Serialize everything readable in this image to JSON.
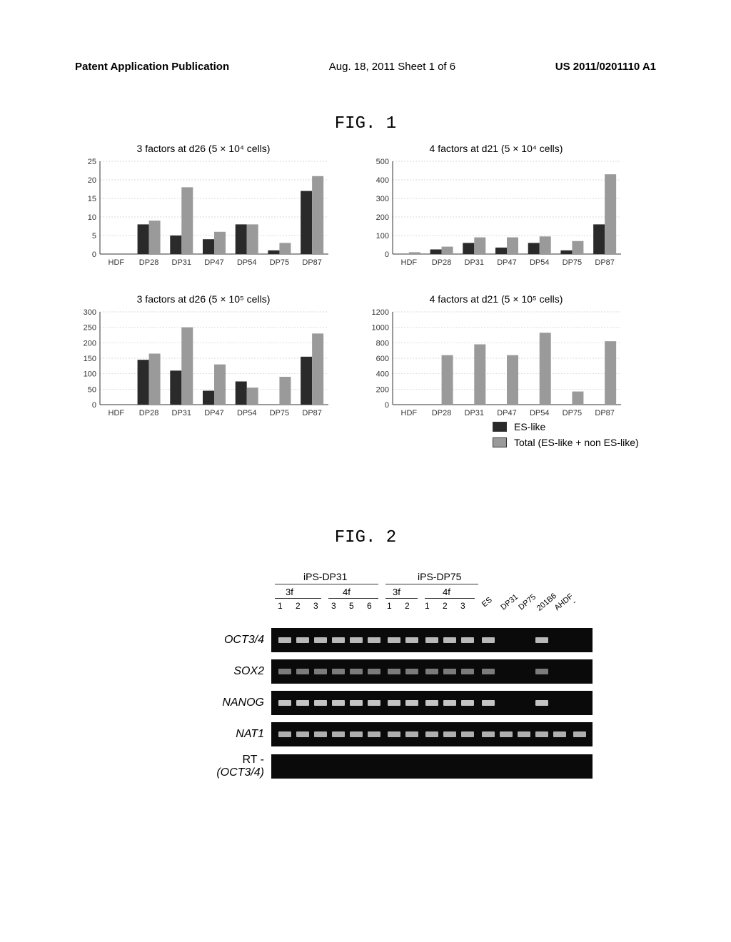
{
  "header": {
    "left": "Patent Application Publication",
    "mid": "Aug. 18, 2011  Sheet 1 of 6",
    "right": "US 2011/0201110 A1"
  },
  "fig1_label": "FIG. 1",
  "fig2_label": "FIG. 2",
  "charts": {
    "categories": [
      "HDF",
      "DP28",
      "DP31",
      "DP47",
      "DP54",
      "DP75",
      "DP87"
    ],
    "es_color": "#2a2a2a",
    "total_color": "#9a9a9a",
    "grid_color": "#cccccc",
    "axis_color": "#333333",
    "bg_color": "#ffffff",
    "label_fontsize": 11,
    "title_fontsize": 14,
    "bar_width": 0.35,
    "topleft": {
      "title": "3 factors at d26 (5 × 10⁴ cells)",
      "ylim": [
        0,
        25
      ],
      "ytick_step": 5,
      "es": [
        0,
        8,
        5,
        4,
        8,
        1,
        17
      ],
      "total": [
        0,
        9,
        18,
        6,
        8,
        3,
        21
      ]
    },
    "topright": {
      "title": "4 factors at d21 (5 × 10⁴ cells)",
      "ylim": [
        0,
        500
      ],
      "ytick_step": 100,
      "es": [
        0,
        25,
        60,
        35,
        60,
        20,
        160
      ],
      "total": [
        10,
        40,
        90,
        90,
        95,
        70,
        430
      ]
    },
    "botleft": {
      "title": "3 factors at d26 (5 × 10⁵ cells)",
      "ylim": [
        0,
        300
      ],
      "ytick_step": 50,
      "es": [
        0,
        145,
        110,
        45,
        75,
        0,
        155
      ],
      "total": [
        0,
        165,
        250,
        130,
        55,
        90,
        230
      ]
    },
    "botright": {
      "title": "4 factors at d21 (5 × 10⁵ cells)",
      "ylim": [
        0,
        1200
      ],
      "ytick_step": 200,
      "es": [
        0,
        0,
        0,
        0,
        0,
        0,
        0
      ],
      "total": [
        0,
        640,
        780,
        640,
        930,
        170,
        820
      ]
    }
  },
  "legend": {
    "es_label": "ES-like",
    "total_label": "Total (ES-like + non ES-like)"
  },
  "fig2": {
    "group1_label": "iPS-DP31",
    "group2_label": "iPS-DP75",
    "sub_labels": [
      "3f",
      "4f",
      "3f",
      "4f"
    ],
    "lane_numbers_g1": [
      "1",
      "2",
      "3",
      "3",
      "5",
      "6"
    ],
    "lane_numbers_g2": [
      "1",
      "2",
      "1",
      "2",
      "3"
    ],
    "right_labels": [
      "ES",
      "DP31",
      "DP75",
      "201B6",
      "AHDF",
      "-"
    ],
    "genes": [
      "OCT3/4",
      "SOX2",
      "NANOG",
      "NAT1"
    ],
    "rt_label_top": "RT -",
    "rt_label_bot": "(OCT3/4)",
    "band_color": "#d8d8d8",
    "strip_bg": "#0a0a0a",
    "bands": {
      "OCT3/4": {
        "lanes": [
          0,
          1,
          2,
          3,
          4,
          5,
          6,
          7,
          8,
          9,
          10,
          11,
          14
        ],
        "brightness": 0.85
      },
      "SOX2": {
        "lanes": [
          0,
          1,
          2,
          3,
          4,
          5,
          6,
          7,
          8,
          9,
          10,
          11,
          14
        ],
        "brightness": 0.55
      },
      "NANOG": {
        "lanes": [
          0,
          1,
          2,
          3,
          4,
          5,
          6,
          7,
          8,
          9,
          10,
          11,
          14
        ],
        "brightness": 0.9
      },
      "NAT1": {
        "lanes": [
          0,
          1,
          2,
          3,
          4,
          5,
          6,
          7,
          8,
          9,
          10,
          11,
          12,
          13,
          14,
          15,
          16
        ],
        "brightness": 0.8
      },
      "RT": {
        "lanes": [],
        "brightness": 0
      }
    },
    "lane_positions": [
      12,
      37,
      62,
      87,
      112,
      137,
      165,
      190,
      218,
      243,
      268,
      297,
      322,
      347,
      372,
      397,
      425
    ],
    "band_width": 18
  }
}
